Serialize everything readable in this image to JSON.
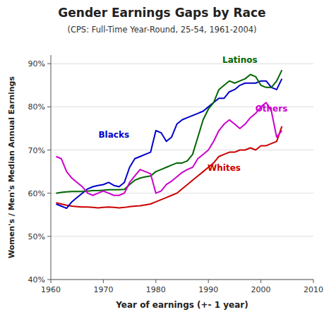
{
  "chart_data": {
    "type": "line",
    "title": "Gender Earnings Gaps by Race",
    "subtitle": "(CPS: Full-Time Year-Round, 25-54, 1961-2004)",
    "x_label": "Year of earnings (+- 1 year)",
    "y_label": "Women's / Men's Median Annual Earnings",
    "xlim": [
      1960,
      2010
    ],
    "ylim": [
      0.4,
      0.92
    ],
    "xticks": [
      1960,
      1970,
      1980,
      1990,
      2000,
      2010
    ],
    "yticks": [
      {
        "value": 0.4,
        "label": "40%"
      },
      {
        "value": 0.5,
        "label": "50%"
      },
      {
        "value": 0.6,
        "label": "60%"
      },
      {
        "value": 0.7,
        "label": "70%"
      },
      {
        "value": 0.8,
        "label": "80%"
      },
      {
        "value": 0.9,
        "label": "90%"
      }
    ],
    "grid": true,
    "x": [
      1961,
      1962,
      1963,
      1964,
      1965,
      1966,
      1967,
      1968,
      1969,
      1970,
      1971,
      1972,
      1973,
      1974,
      1975,
      1976,
      1977,
      1978,
      1979,
      1980,
      1981,
      1982,
      1983,
      1984,
      1985,
      1986,
      1987,
      1988,
      1989,
      1990,
      1991,
      1992,
      1993,
      1994,
      1995,
      1996,
      1997,
      1998,
      1999,
      2000,
      2001,
      2002,
      2003,
      2004
    ],
    "series": [
      {
        "name": "Whites",
        "color": "#cc0000",
        "label_x": 1993,
        "label_y": 0.658,
        "values": [
          0.578,
          0.575,
          0.572,
          0.57,
          0.569,
          0.568,
          0.568,
          0.567,
          0.566,
          0.567,
          0.568,
          0.567,
          0.566,
          0.567,
          0.569,
          0.57,
          0.571,
          0.573,
          0.575,
          0.58,
          0.585,
          0.59,
          0.595,
          0.6,
          0.61,
          0.62,
          0.63,
          0.64,
          0.65,
          0.66,
          0.67,
          0.685,
          0.69,
          0.695,
          0.695,
          0.7,
          0.7,
          0.705,
          0.7,
          0.71,
          0.71,
          0.715,
          0.72,
          0.755
        ]
      },
      {
        "name": "Blacks",
        "color": "#0000cc",
        "label_x": 1972,
        "label_y": 0.735,
        "values": [
          0.575,
          0.57,
          0.565,
          0.58,
          0.59,
          0.6,
          0.61,
          0.615,
          0.618,
          0.62,
          0.625,
          0.618,
          0.615,
          0.625,
          0.66,
          0.68,
          0.685,
          0.69,
          0.695,
          0.745,
          0.74,
          0.72,
          0.73,
          0.76,
          0.77,
          0.775,
          0.78,
          0.785,
          0.79,
          0.8,
          0.81,
          0.82,
          0.82,
          0.835,
          0.84,
          0.85,
          0.855,
          0.855,
          0.855,
          0.86,
          0.86,
          0.845,
          0.84,
          0.865
        ]
      },
      {
        "name": "Latinos",
        "color": "#006600",
        "label_x": 1996,
        "label_y": 0.908,
        "values": [
          0.6,
          0.602,
          0.603,
          0.604,
          0.604,
          0.604,
          0.605,
          0.606,
          0.606,
          0.607,
          0.608,
          0.608,
          0.608,
          0.609,
          0.62,
          0.63,
          0.635,
          0.638,
          0.64,
          0.65,
          0.655,
          0.66,
          0.665,
          0.67,
          0.67,
          0.675,
          0.69,
          0.73,
          0.77,
          0.795,
          0.81,
          0.84,
          0.85,
          0.86,
          0.855,
          0.86,
          0.865,
          0.875,
          0.87,
          0.85,
          0.845,
          0.845,
          0.86,
          0.885
        ]
      },
      {
        "name": "Others",
        "color": "#cc00cc",
        "label_x": 2002,
        "label_y": 0.795,
        "values": [
          0.685,
          0.68,
          0.65,
          0.635,
          0.625,
          0.615,
          0.6,
          0.595,
          0.6,
          0.605,
          0.6,
          0.595,
          0.595,
          0.6,
          0.625,
          0.64,
          0.655,
          0.65,
          0.645,
          0.6,
          0.605,
          0.62,
          0.628,
          0.638,
          0.648,
          0.655,
          0.66,
          0.68,
          0.69,
          0.7,
          0.72,
          0.745,
          0.76,
          0.77,
          0.76,
          0.75,
          0.76,
          0.775,
          0.785,
          0.8,
          0.81,
          0.79,
          0.73,
          0.745
        ]
      }
    ]
  }
}
